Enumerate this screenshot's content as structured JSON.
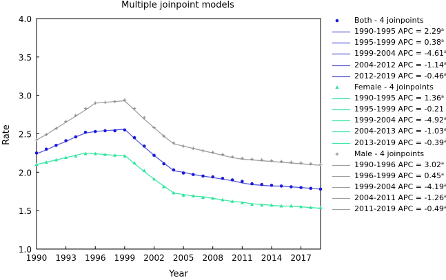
{
  "chart_data": {
    "type": "line",
    "title": "Multiple joinpoint models",
    "xlabel": "Year",
    "ylabel": "Rate",
    "xlim": [
      1990,
      2019
    ],
    "ylim": [
      1.0,
      4.0
    ],
    "x_ticks": [
      1990,
      1993,
      1996,
      1999,
      2002,
      2005,
      2008,
      2011,
      2014,
      2017
    ],
    "y_ticks": [
      "1.0",
      "1.5",
      "2.0",
      "2.5",
      "3.0",
      "3.5",
      "4.0"
    ],
    "years": [
      1990,
      1991,
      1992,
      1993,
      1994,
      1995,
      1996,
      1997,
      1998,
      1999,
      2000,
      2001,
      2002,
      2003,
      2004,
      2005,
      2006,
      2007,
      2008,
      2009,
      2010,
      2011,
      2012,
      2013,
      2014,
      2015,
      2016,
      2017,
      2018,
      2019
    ],
    "series": [
      {
        "name": "Both - 4 joinpoints",
        "color": "#1a1adb",
        "line_color": "#5b5bd6",
        "marker": "circle",
        "observed": [
          2.25,
          2.3,
          2.35,
          2.41,
          2.46,
          2.52,
          2.53,
          2.54,
          2.54,
          2.55,
          2.45,
          2.34,
          2.22,
          2.11,
          2.03,
          1.99,
          1.97,
          1.95,
          1.94,
          1.92,
          1.9,
          1.88,
          1.85,
          1.84,
          1.83,
          1.82,
          1.81,
          1.8,
          1.79,
          1.78
        ],
        "fitted": [
          2.24,
          2.29,
          2.35,
          2.4,
          2.46,
          2.51,
          2.53,
          2.54,
          2.55,
          2.56,
          2.44,
          2.33,
          2.22,
          2.12,
          2.02,
          2.0,
          1.97,
          1.95,
          1.93,
          1.91,
          1.89,
          1.86,
          1.84,
          1.83,
          1.82,
          1.82,
          1.81,
          1.8,
          1.79,
          1.78
        ]
      },
      {
        "name": "Female - 4 joinpoints",
        "color": "#2ee59a",
        "line_color": "#3ee8a6",
        "marker": "triangle",
        "observed": [
          2.1,
          2.13,
          2.16,
          2.19,
          2.21,
          2.24,
          2.24,
          2.23,
          2.22,
          2.21,
          2.12,
          2.02,
          1.91,
          1.81,
          1.73,
          1.7,
          1.69,
          1.67,
          1.66,
          1.64,
          1.62,
          1.6,
          1.58,
          1.57,
          1.57,
          1.56,
          1.56,
          1.55,
          1.54,
          1.54
        ],
        "fitted": [
          2.1,
          2.13,
          2.16,
          2.19,
          2.22,
          2.25,
          2.24,
          2.23,
          2.22,
          2.22,
          2.11,
          2.01,
          1.91,
          1.82,
          1.73,
          1.71,
          1.69,
          1.68,
          1.66,
          1.64,
          1.62,
          1.61,
          1.59,
          1.58,
          1.57,
          1.56,
          1.56,
          1.55,
          1.54,
          1.53
        ]
      },
      {
        "name": "Male - 4 joinpoints",
        "color": "#8f8f8f",
        "line_color": "#a0a0a0",
        "marker": "plus",
        "observed": [
          2.42,
          2.49,
          2.57,
          2.66,
          2.74,
          2.83,
          2.9,
          2.91,
          2.92,
          2.94,
          2.83,
          2.71,
          2.58,
          2.47,
          2.38,
          2.34,
          2.31,
          2.28,
          2.26,
          2.23,
          2.2,
          2.18,
          2.17,
          2.16,
          2.15,
          2.14,
          2.13,
          2.12,
          2.11,
          2.1
        ],
        "fitted": [
          2.42,
          2.49,
          2.57,
          2.65,
          2.73,
          2.81,
          2.9,
          2.91,
          2.92,
          2.93,
          2.81,
          2.69,
          2.58,
          2.47,
          2.37,
          2.34,
          2.31,
          2.28,
          2.25,
          2.22,
          2.19,
          2.17,
          2.16,
          2.15,
          2.14,
          2.13,
          2.12,
          2.11,
          2.1,
          2.09
        ]
      }
    ]
  },
  "legend": [
    {
      "kind": "series",
      "series": 0,
      "label": "Both - 4 joinpoints"
    },
    {
      "kind": "segment",
      "series": 0,
      "label": "1990-1995 APC = 2.29",
      "sup": "a"
    },
    {
      "kind": "segment",
      "series": 0,
      "label": "1995-1999 APC = 0.38",
      "sup": "a"
    },
    {
      "kind": "segment",
      "series": 0,
      "label": "1999-2004 APC = -4.61",
      "sup": "a"
    },
    {
      "kind": "segment",
      "series": 0,
      "label": "2004-2012 APC = -1.14",
      "sup": "a"
    },
    {
      "kind": "segment",
      "series": 0,
      "label": "2012-2019 APC = -0.46",
      "sup": "a"
    },
    {
      "kind": "series",
      "series": 1,
      "label": "Female - 4 joinpoints"
    },
    {
      "kind": "segment",
      "series": 1,
      "label": "1990-1995 APC = 1.36",
      "sup": "a"
    },
    {
      "kind": "segment",
      "series": 1,
      "label": "1995-1999 APC = -0.21",
      "sup": ""
    },
    {
      "kind": "segment",
      "series": 1,
      "label": "1999-2004 APC = -4.92",
      "sup": "a"
    },
    {
      "kind": "segment",
      "series": 1,
      "label": "2004-2013 APC = -1.03",
      "sup": "a"
    },
    {
      "kind": "segment",
      "series": 1,
      "label": "2013-2019 APC = -0.39",
      "sup": "a"
    },
    {
      "kind": "series",
      "series": 2,
      "label": "Male - 4 joinpoints"
    },
    {
      "kind": "segment",
      "series": 2,
      "label": "1990-1996 APC = 3.02",
      "sup": "a"
    },
    {
      "kind": "segment",
      "series": 2,
      "label": "1996-1999 APC = 0.45",
      "sup": "a"
    },
    {
      "kind": "segment",
      "series": 2,
      "label": "1999-2004 APC = -4.19",
      "sup": "a"
    },
    {
      "kind": "segment",
      "series": 2,
      "label": "2004-2011 APC = -1.26",
      "sup": "a"
    },
    {
      "kind": "segment",
      "series": 2,
      "label": "2011-2019 APC = -0.49",
      "sup": "a"
    }
  ]
}
